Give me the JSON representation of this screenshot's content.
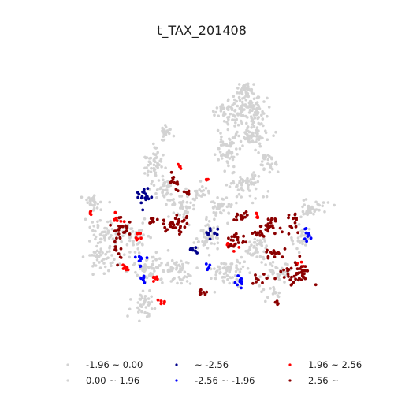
{
  "chart_data": {
    "type": "scatter",
    "title": "t_TAX_201408",
    "grid": false,
    "legend_position": "bottom",
    "legend": [
      {
        "label": "-1.96 ~ 0.00",
        "color": "#d3d3d3"
      },
      {
        "label": "~ -2.56",
        "color": "#00008b"
      },
      {
        "label": "1.96 ~ 2.56",
        "color": "#ff0000"
      },
      {
        "label": "0.00 ~ 1.96",
        "color": "#d3d3d3"
      },
      {
        "label": "-2.56 ~ -1.96",
        "color": "#0000ff"
      },
      {
        "label": "2.56 ~",
        "color": "#8b0000"
      }
    ],
    "series": [
      {
        "name": "-1.96 ~ 0.00 / 0.00 ~ 1.96",
        "color": "#d3d3d3",
        "clusters": [
          {
            "x": 312,
            "y": 115,
            "rx": 10,
            "ry": 8,
            "n": 40
          },
          {
            "x": 292,
            "y": 140,
            "rx": 18,
            "ry": 14,
            "n": 70
          },
          {
            "x": 320,
            "y": 140,
            "rx": 16,
            "ry": 14,
            "n": 70
          },
          {
            "x": 322,
            "y": 172,
            "rx": 18,
            "ry": 16,
            "n": 70
          },
          {
            "x": 290,
            "y": 190,
            "rx": 14,
            "ry": 18,
            "n": 60
          },
          {
            "x": 340,
            "y": 205,
            "rx": 12,
            "ry": 10,
            "n": 30
          },
          {
            "x": 310,
            "y": 235,
            "rx": 18,
            "ry": 16,
            "n": 60
          },
          {
            "x": 283,
            "y": 262,
            "rx": 12,
            "ry": 14,
            "n": 40
          },
          {
            "x": 210,
            "y": 170,
            "rx": 8,
            "ry": 10,
            "n": 25
          },
          {
            "x": 196,
            "y": 210,
            "rx": 12,
            "ry": 20,
            "n": 60
          },
          {
            "x": 208,
            "y": 240,
            "rx": 10,
            "ry": 12,
            "n": 30
          },
          {
            "x": 232,
            "y": 258,
            "rx": 14,
            "ry": 14,
            "n": 40
          },
          {
            "x": 118,
            "y": 255,
            "rx": 10,
            "ry": 8,
            "n": 25
          },
          {
            "x": 132,
            "y": 292,
            "rx": 14,
            "ry": 18,
            "n": 50
          },
          {
            "x": 128,
            "y": 330,
            "rx": 14,
            "ry": 14,
            "n": 40
          },
          {
            "x": 170,
            "y": 300,
            "rx": 16,
            "ry": 16,
            "n": 50
          },
          {
            "x": 188,
            "y": 340,
            "rx": 20,
            "ry": 14,
            "n": 60
          },
          {
            "x": 182,
            "y": 385,
            "rx": 14,
            "ry": 14,
            "n": 40
          },
          {
            "x": 225,
            "y": 345,
            "rx": 16,
            "ry": 16,
            "n": 60
          },
          {
            "x": 262,
            "y": 300,
            "rx": 14,
            "ry": 16,
            "n": 50
          },
          {
            "x": 290,
            "y": 345,
            "rx": 22,
            "ry": 14,
            "n": 70
          },
          {
            "x": 325,
            "y": 315,
            "rx": 14,
            "ry": 12,
            "n": 40
          },
          {
            "x": 352,
            "y": 342,
            "rx": 16,
            "ry": 12,
            "n": 40
          },
          {
            "x": 395,
            "y": 265,
            "rx": 18,
            "ry": 10,
            "n": 40
          },
          {
            "x": 380,
            "y": 300,
            "rx": 14,
            "ry": 12,
            "n": 30
          },
          {
            "x": 255,
            "y": 245,
            "rx": 8,
            "ry": 10,
            "n": 20
          },
          {
            "x": 348,
            "y": 372,
            "rx": 12,
            "ry": 8,
            "n": 15
          }
        ]
      },
      {
        "name": "~ -2.56",
        "color": "#00008b",
        "clusters": [
          {
            "x": 180,
            "y": 248,
            "rx": 10,
            "ry": 12,
            "n": 18
          },
          {
            "x": 245,
            "y": 316,
            "rx": 6,
            "ry": 4,
            "n": 8
          },
          {
            "x": 268,
            "y": 296,
            "rx": 6,
            "ry": 8,
            "n": 10
          }
        ]
      },
      {
        "name": "-2.56 ~ -1.96",
        "color": "#0000ff",
        "clusters": [
          {
            "x": 178,
            "y": 330,
            "rx": 5,
            "ry": 6,
            "n": 10
          },
          {
            "x": 183,
            "y": 356,
            "rx": 4,
            "ry": 4,
            "n": 6
          },
          {
            "x": 305,
            "y": 358,
            "rx": 5,
            "ry": 8,
            "n": 10
          },
          {
            "x": 390,
            "y": 298,
            "rx": 5,
            "ry": 8,
            "n": 10
          },
          {
            "x": 262,
            "y": 338,
            "rx": 4,
            "ry": 4,
            "n": 5
          }
        ]
      },
      {
        "name": "1.96 ~ 2.56",
        "color": "#ff0000",
        "clusters": [
          {
            "x": 150,
            "y": 278,
            "rx": 6,
            "ry": 5,
            "n": 8
          },
          {
            "x": 175,
            "y": 300,
            "rx": 5,
            "ry": 5,
            "n": 8
          },
          {
            "x": 160,
            "y": 340,
            "rx": 5,
            "ry": 4,
            "n": 8
          },
          {
            "x": 198,
            "y": 352,
            "rx": 5,
            "ry": 4,
            "n": 8
          },
          {
            "x": 205,
            "y": 383,
            "rx": 4,
            "ry": 4,
            "n": 6
          },
          {
            "x": 292,
            "y": 312,
            "rx": 6,
            "ry": 6,
            "n": 8
          },
          {
            "x": 325,
            "y": 275,
            "rx": 4,
            "ry": 4,
            "n": 5
          },
          {
            "x": 115,
            "y": 270,
            "rx": 3,
            "ry": 3,
            "n": 4
          },
          {
            "x": 230,
            "y": 210,
            "rx": 4,
            "ry": 6,
            "n": 4
          },
          {
            "x": 380,
            "y": 335,
            "rx": 5,
            "ry": 4,
            "n": 5
          },
          {
            "x": 264,
            "y": 230,
            "rx": 3,
            "ry": 3,
            "n": 3
          }
        ]
      },
      {
        "name": "2.56 ~",
        "color": "#8b0000",
        "clusters": [
          {
            "x": 155,
            "y": 290,
            "rx": 10,
            "ry": 12,
            "n": 25
          },
          {
            "x": 222,
            "y": 232,
            "rx": 5,
            "ry": 12,
            "n": 12
          },
          {
            "x": 222,
            "y": 285,
            "rx": 14,
            "ry": 10,
            "n": 35
          },
          {
            "x": 238,
            "y": 245,
            "rx": 4,
            "ry": 5,
            "n": 6
          },
          {
            "x": 195,
            "y": 280,
            "rx": 6,
            "ry": 4,
            "n": 8
          },
          {
            "x": 305,
            "y": 275,
            "rx": 10,
            "ry": 6,
            "n": 15
          },
          {
            "x": 300,
            "y": 305,
            "rx": 12,
            "ry": 8,
            "n": 20
          },
          {
            "x": 330,
            "y": 295,
            "rx": 10,
            "ry": 6,
            "n": 15
          },
          {
            "x": 345,
            "y": 285,
            "rx": 10,
            "ry": 8,
            "n": 20
          },
          {
            "x": 372,
            "y": 280,
            "rx": 6,
            "ry": 10,
            "n": 15
          },
          {
            "x": 350,
            "y": 322,
            "rx": 10,
            "ry": 6,
            "n": 15
          },
          {
            "x": 378,
            "y": 348,
            "rx": 16,
            "ry": 14,
            "n": 45
          },
          {
            "x": 255,
            "y": 370,
            "rx": 8,
            "ry": 4,
            "n": 8
          },
          {
            "x": 330,
            "y": 355,
            "rx": 10,
            "ry": 6,
            "n": 10
          },
          {
            "x": 150,
            "y": 320,
            "rx": 6,
            "ry": 8,
            "n": 10
          },
          {
            "x": 352,
            "y": 385,
            "rx": 3,
            "ry": 3,
            "n": 4
          }
        ]
      }
    ]
  }
}
